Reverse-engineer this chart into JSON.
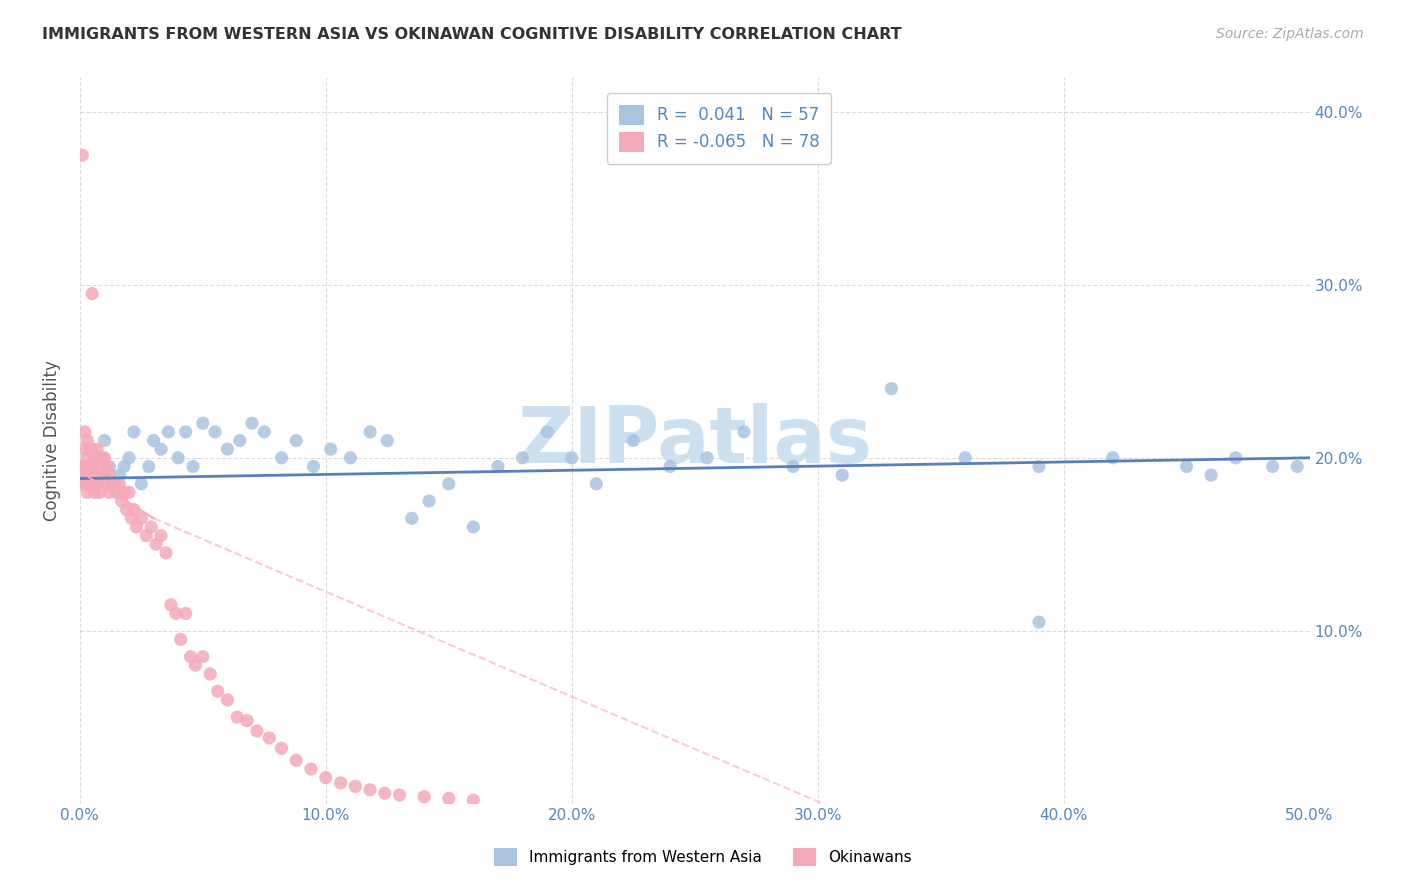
{
  "title": "IMMIGRANTS FROM WESTERN ASIA VS OKINAWAN COGNITIVE DISABILITY CORRELATION CHART",
  "source": "Source: ZipAtlas.com",
  "ylabel": "Cognitive Disability",
  "xlim": [
    0,
    0.5
  ],
  "ylim": [
    0,
    0.42
  ],
  "xtick_labels": [
    "0.0%",
    "10.0%",
    "20.0%",
    "30.0%",
    "40.0%",
    "50.0%"
  ],
  "xtick_vals": [
    0.0,
    0.1,
    0.2,
    0.3,
    0.4,
    0.5
  ],
  "ytick_labels_right": [
    "10.0%",
    "20.0%",
    "30.0%",
    "40.0%"
  ],
  "ytick_vals": [
    0.1,
    0.2,
    0.3,
    0.4
  ],
  "legend_label_blue": "Immigrants from Western Asia",
  "legend_label_pink": "Okinawans",
  "R_blue": 0.041,
  "N_blue": 57,
  "R_pink": -0.065,
  "N_pink": 78,
  "color_blue": "#a8c4e0",
  "color_pink": "#f4a8b8",
  "line_blue": "#5580bb",
  "line_pink": "#f4a8b8",
  "watermark": "ZIPatlas",
  "watermark_color": "#cce0f0",
  "blue_scatter_x": [
    0.002,
    0.004,
    0.005,
    0.006,
    0.008,
    0.01,
    0.012,
    0.014,
    0.016,
    0.018,
    0.02,
    0.022,
    0.025,
    0.028,
    0.03,
    0.033,
    0.036,
    0.04,
    0.043,
    0.046,
    0.05,
    0.055,
    0.06,
    0.065,
    0.07,
    0.075,
    0.082,
    0.088,
    0.095,
    0.102,
    0.11,
    0.118,
    0.125,
    0.135,
    0.142,
    0.15,
    0.16,
    0.17,
    0.18,
    0.19,
    0.2,
    0.21,
    0.225,
    0.24,
    0.255,
    0.27,
    0.29,
    0.31,
    0.33,
    0.36,
    0.39,
    0.42,
    0.45,
    0.46,
    0.47,
    0.485,
    0.495
  ],
  "blue_scatter_y": [
    0.19,
    0.185,
    0.195,
    0.185,
    0.2,
    0.21,
    0.195,
    0.185,
    0.19,
    0.195,
    0.2,
    0.215,
    0.185,
    0.195,
    0.21,
    0.205,
    0.215,
    0.2,
    0.215,
    0.195,
    0.22,
    0.215,
    0.205,
    0.21,
    0.22,
    0.215,
    0.2,
    0.21,
    0.195,
    0.205,
    0.2,
    0.215,
    0.21,
    0.165,
    0.175,
    0.185,
    0.16,
    0.195,
    0.2,
    0.215,
    0.2,
    0.185,
    0.21,
    0.195,
    0.2,
    0.215,
    0.195,
    0.19,
    0.24,
    0.2,
    0.195,
    0.2,
    0.195,
    0.19,
    0.2,
    0.195,
    0.195
  ],
  "blue_outlier_x": [
    0.39
  ],
  "blue_outlier_y": [
    0.105
  ],
  "pink_scatter_x": [
    0.001,
    0.001,
    0.001,
    0.002,
    0.002,
    0.002,
    0.002,
    0.003,
    0.003,
    0.003,
    0.003,
    0.004,
    0.004,
    0.004,
    0.005,
    0.005,
    0.005,
    0.005,
    0.006,
    0.006,
    0.006,
    0.007,
    0.007,
    0.007,
    0.008,
    0.008,
    0.008,
    0.009,
    0.009,
    0.01,
    0.01,
    0.011,
    0.011,
    0.012,
    0.012,
    0.013,
    0.014,
    0.015,
    0.016,
    0.017,
    0.018,
    0.019,
    0.02,
    0.021,
    0.022,
    0.023,
    0.025,
    0.027,
    0.029,
    0.031,
    0.033,
    0.035,
    0.037,
    0.039,
    0.041,
    0.043,
    0.045,
    0.047,
    0.05,
    0.053,
    0.056,
    0.06,
    0.064,
    0.068,
    0.072,
    0.077,
    0.082,
    0.088,
    0.094,
    0.1,
    0.106,
    0.112,
    0.118,
    0.124,
    0.13,
    0.14,
    0.15,
    0.16
  ],
  "pink_scatter_y": [
    0.375,
    0.195,
    0.185,
    0.215,
    0.205,
    0.195,
    0.185,
    0.21,
    0.2,
    0.19,
    0.18,
    0.205,
    0.195,
    0.185,
    0.295,
    0.205,
    0.195,
    0.185,
    0.2,
    0.19,
    0.18,
    0.205,
    0.195,
    0.185,
    0.2,
    0.19,
    0.18,
    0.2,
    0.19,
    0.2,
    0.19,
    0.195,
    0.185,
    0.19,
    0.18,
    0.185,
    0.185,
    0.18,
    0.185,
    0.175,
    0.18,
    0.17,
    0.18,
    0.165,
    0.17,
    0.16,
    0.165,
    0.155,
    0.16,
    0.15,
    0.155,
    0.145,
    0.115,
    0.11,
    0.095,
    0.11,
    0.085,
    0.08,
    0.085,
    0.075,
    0.065,
    0.06,
    0.05,
    0.048,
    0.042,
    0.038,
    0.032,
    0.025,
    0.02,
    0.015,
    0.012,
    0.01,
    0.008,
    0.006,
    0.005,
    0.004,
    0.003,
    0.002
  ]
}
